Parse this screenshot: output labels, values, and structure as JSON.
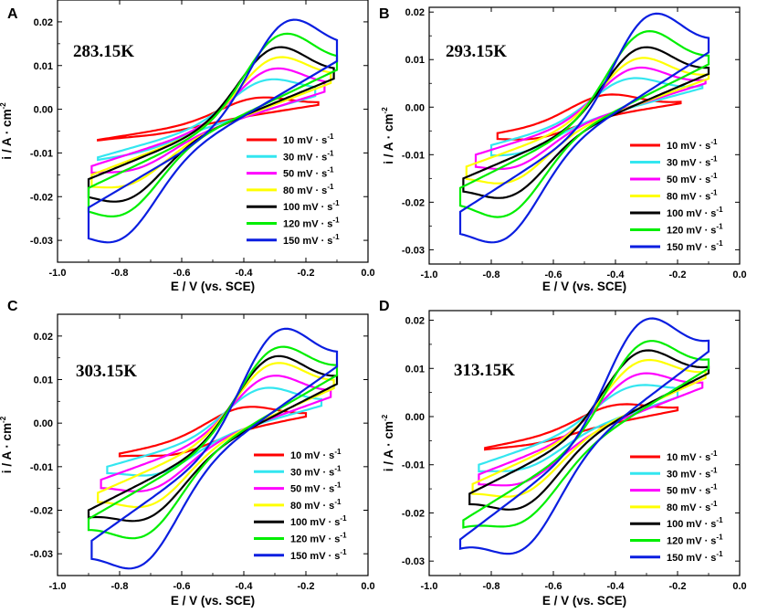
{
  "colors": {
    "10": "#ff0000",
    "30": "#33e6f0",
    "50": "#ff00ff",
    "80": "#ffff00",
    "100": "#000000",
    "120": "#00ee00",
    "150": "#0a1ee0"
  },
  "legend": {
    "labels": [
      "10 mV · s",
      "30 mV · s",
      "50 mV · s",
      "80 mV · s",
      "100 mV · s",
      "120 mV · s",
      "150 mV · s"
    ],
    "superscript": "-1"
  },
  "axes": {
    "xlabel": "E / V (vs. SCE)",
    "ylabel": "i / A · cm",
    "ylabel_sup": "-2",
    "xticks": [
      "-1.0",
      "-0.8",
      "-0.6",
      "-0.4",
      "-0.2",
      "0.0"
    ],
    "yticks": [
      "-0.03",
      "-0.02",
      "-0.01",
      "0.00",
      "0.01",
      "0.02"
    ]
  },
  "chart_data": [
    {
      "type": "line",
      "panel": "A",
      "title": "283.15K",
      "xlabel": "E / V (vs. SCE)",
      "ylabel": "i / A · cm-2",
      "xlim": [
        -1.0,
        0.0
      ],
      "ylim": [
        -0.035,
        0.025
      ],
      "legend": "lower-right",
      "series": [
        {
          "name": "10 mV · s-1",
          "scan_rate": 10,
          "x_start": -0.87,
          "x_end": -0.16,
          "i_start": -0.007,
          "i_end": 0.001,
          "ipa": 0.0025,
          "epa": -0.37,
          "ipc": -0.0055,
          "epc": -0.66
        },
        {
          "name": "30 mV · s-1",
          "scan_rate": 30,
          "x_start": -0.87,
          "x_end": -0.17,
          "i_start": -0.011,
          "i_end": 0.003,
          "ipa": 0.0065,
          "epa": -0.34,
          "ipc": -0.0095,
          "epc": -0.72
        },
        {
          "name": "50 mV · s-1",
          "scan_rate": 50,
          "x_start": -0.89,
          "x_end": -0.14,
          "i_start": -0.013,
          "i_end": 0.004,
          "ipa": 0.009,
          "epa": -0.32,
          "ipc": -0.0135,
          "epc": -0.74
        },
        {
          "name": "80 mV · s-1",
          "scan_rate": 80,
          "x_start": -0.89,
          "x_end": -0.12,
          "i_start": -0.015,
          "i_end": 0.006,
          "ipa": 0.0115,
          "epa": -0.31,
          "ipc": -0.017,
          "epc": -0.76
        },
        {
          "name": "100 mV · s-1",
          "scan_rate": 100,
          "x_start": -0.9,
          "x_end": -0.11,
          "i_start": -0.016,
          "i_end": 0.007,
          "ipa": 0.0138,
          "epa": -0.31,
          "ipc": -0.0205,
          "epc": -0.77
        },
        {
          "name": "120 mV · s-1",
          "scan_rate": 120,
          "x_start": -0.9,
          "x_end": -0.1,
          "i_start": -0.018,
          "i_end": 0.009,
          "ipa": 0.0168,
          "epa": -0.29,
          "ipc": -0.0238,
          "epc": -0.78
        },
        {
          "name": "150 mV · s-1",
          "scan_rate": 150,
          "x_start": -0.9,
          "x_end": -0.1,
          "i_start": -0.0225,
          "i_end": 0.011,
          "ipa": 0.0198,
          "epa": -0.27,
          "ipc": -0.0295,
          "epc": -0.79
        }
      ]
    },
    {
      "type": "line",
      "panel": "B",
      "title": "293.15K",
      "xlabel": "E / V (vs. SCE)",
      "ylabel": "i / A · cm-2",
      "xlim": [
        -1.0,
        0.0
      ],
      "ylim": [
        -0.033,
        0.021
      ],
      "legend": "lower-right",
      "series": [
        {
          "name": "10 mV · s-1",
          "scan_rate": 10,
          "x_start": -0.78,
          "x_end": -0.19,
          "i_start": -0.0055,
          "i_end": 0.0008,
          "ipa": 0.0025,
          "epa": -0.44,
          "ipc": -0.0065,
          "epc": -0.65
        },
        {
          "name": "30 mV · s-1",
          "scan_rate": 30,
          "x_start": -0.8,
          "x_end": -0.12,
          "i_start": -0.008,
          "i_end": 0.004,
          "ipa": 0.0058,
          "epa": -0.37,
          "ipc": -0.0095,
          "epc": -0.7
        },
        {
          "name": "50 mV · s-1",
          "scan_rate": 50,
          "x_start": -0.85,
          "x_end": -0.11,
          "i_start": -0.01,
          "i_end": 0.005,
          "ipa": 0.008,
          "epa": -0.35,
          "ipc": -0.0125,
          "epc": -0.72
        },
        {
          "name": "80 mV · s-1",
          "scan_rate": 80,
          "x_start": -0.88,
          "x_end": -0.1,
          "i_start": -0.0125,
          "i_end": 0.006,
          "ipa": 0.01,
          "epa": -0.34,
          "ipc": -0.0155,
          "epc": -0.73
        },
        {
          "name": "100 mV · s-1",
          "scan_rate": 100,
          "x_start": -0.89,
          "x_end": -0.1,
          "i_start": -0.015,
          "i_end": 0.007,
          "ipa": 0.0122,
          "epa": -0.33,
          "ipc": -0.0185,
          "epc": -0.73
        },
        {
          "name": "120 mV · s-1",
          "scan_rate": 120,
          "x_start": -0.9,
          "x_end": -0.1,
          "i_start": -0.017,
          "i_end": 0.009,
          "ipa": 0.0155,
          "epa": -0.32,
          "ipc": -0.0225,
          "epc": -0.74
        },
        {
          "name": "150 mV · s-1",
          "scan_rate": 150,
          "x_start": -0.9,
          "x_end": -0.1,
          "i_start": -0.022,
          "i_end": 0.0115,
          "ipa": 0.019,
          "epa": -0.3,
          "ipc": -0.0275,
          "epc": -0.75
        }
      ]
    },
    {
      "type": "line",
      "panel": "C",
      "title": "303.15K",
      "xlabel": "E / V (vs. SCE)",
      "ylabel": "i / A · cm-2",
      "xlim": [
        -1.0,
        0.0
      ],
      "ylim": [
        -0.035,
        0.025
      ],
      "legend": "lower-right",
      "series": [
        {
          "name": "10 mV · s-1",
          "scan_rate": 10,
          "x_start": -0.8,
          "x_end": -0.2,
          "i_start": -0.007,
          "i_end": 0.0015,
          "ipa": 0.0035,
          "epa": -0.41,
          "ipc": -0.007,
          "epc": -0.61
        },
        {
          "name": "30 mV · s-1",
          "scan_rate": 30,
          "x_start": -0.84,
          "x_end": -0.15,
          "i_start": -0.01,
          "i_end": 0.004,
          "ipa": 0.0078,
          "epa": -0.35,
          "ipc": -0.0115,
          "epc": -0.67
        },
        {
          "name": "50 mV · s-1",
          "scan_rate": 50,
          "x_start": -0.86,
          "x_end": -0.12,
          "i_start": -0.013,
          "i_end": 0.006,
          "ipa": 0.0105,
          "epa": -0.33,
          "ipc": -0.015,
          "epc": -0.69
        },
        {
          "name": "80 mV · s-1",
          "scan_rate": 80,
          "x_start": -0.87,
          "x_end": -0.11,
          "i_start": -0.016,
          "i_end": 0.008,
          "ipa": 0.0133,
          "epa": -0.32,
          "ipc": -0.0185,
          "epc": -0.69
        },
        {
          "name": "100 mV · s-1",
          "scan_rate": 100,
          "x_start": -0.9,
          "x_end": -0.1,
          "i_start": -0.02,
          "i_end": 0.009,
          "ipa": 0.0148,
          "epa": -0.32,
          "ipc": -0.0215,
          "epc": -0.7
        },
        {
          "name": "120 mV · s-1",
          "scan_rate": 120,
          "x_start": -0.9,
          "x_end": -0.1,
          "i_start": -0.022,
          "i_end": 0.011,
          "ipa": 0.0168,
          "epa": -0.31,
          "ipc": -0.0255,
          "epc": -0.71
        },
        {
          "name": "150 mV · s-1",
          "scan_rate": 150,
          "x_start": -0.89,
          "x_end": -0.1,
          "i_start": -0.027,
          "i_end": 0.013,
          "ipa": 0.0208,
          "epa": -0.3,
          "ipc": -0.0322,
          "epc": -0.72
        }
      ]
    },
    {
      "type": "line",
      "panel": "D",
      "title": "313.15K",
      "xlabel": "E / V (vs. SCE)",
      "ylabel": "i / A · cm-2",
      "xlim": [
        -1.0,
        0.0
      ],
      "ylim": [
        -0.033,
        0.022
      ],
      "legend": "lower-right",
      "series": [
        {
          "name": "10 mV · s-1",
          "scan_rate": 10,
          "x_start": -0.82,
          "x_end": -0.2,
          "i_start": -0.0065,
          "i_end": 0.0013,
          "ipa": 0.0023,
          "epa": -0.41,
          "ipc": -0.0055,
          "epc": -0.65
        },
        {
          "name": "30 mV · s-1",
          "scan_rate": 30,
          "x_start": -0.84,
          "x_end": -0.2,
          "i_start": -0.01,
          "i_end": 0.004,
          "ipa": 0.006,
          "epa": -0.36,
          "ipc": -0.0105,
          "epc": -0.68
        },
        {
          "name": "50 mV · s-1",
          "scan_rate": 50,
          "x_start": -0.84,
          "x_end": -0.12,
          "i_start": -0.012,
          "i_end": 0.006,
          "ipa": 0.0085,
          "epa": -0.34,
          "ipc": -0.0135,
          "epc": -0.69
        },
        {
          "name": "80 mV · s-1",
          "scan_rate": 80,
          "x_start": -0.86,
          "x_end": -0.11,
          "i_start": -0.014,
          "i_end": 0.008,
          "ipa": 0.0112,
          "epa": -0.33,
          "ipc": -0.0158,
          "epc": -0.69
        },
        {
          "name": "100 mV · s-1",
          "scan_rate": 100,
          "x_start": -0.87,
          "x_end": -0.1,
          "i_start": -0.016,
          "i_end": 0.009,
          "ipa": 0.0132,
          "epa": -0.33,
          "ipc": -0.0185,
          "epc": -0.69
        },
        {
          "name": "120 mV · s-1",
          "scan_rate": 120,
          "x_start": -0.89,
          "x_end": -0.1,
          "i_start": -0.0215,
          "i_end": 0.01,
          "ipa": 0.015,
          "epa": -0.32,
          "ipc": -0.0215,
          "epc": -0.69
        },
        {
          "name": "150 mV · s-1",
          "scan_rate": 150,
          "x_start": -0.9,
          "x_end": -0.1,
          "i_start": -0.0255,
          "i_end": 0.0135,
          "ipa": 0.0195,
          "epa": -0.32,
          "ipc": -0.0272,
          "epc": -0.69
        }
      ]
    }
  ]
}
